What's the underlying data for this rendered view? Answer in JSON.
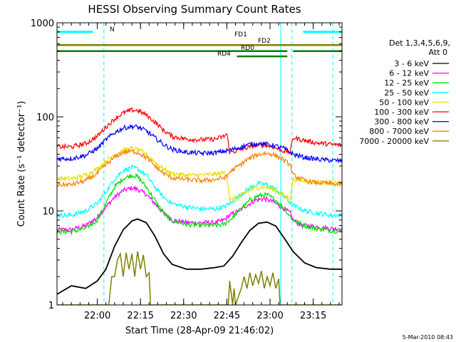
{
  "chart_data": {
    "type": "line",
    "title": "HESSI Observing Summary Count Rates",
    "xlabel": "Start Time (28-Apr-09 21:46:02)",
    "ylabel": "Count Rate (s⁻¹ detector⁻¹)",
    "yscale": "log",
    "ylim": [
      1,
      1000
    ],
    "xlim_minutes": [
      0,
      99
    ],
    "x_tick_labels": [
      "22:00",
      "22:15",
      "22:30",
      "22:45",
      "23:00",
      "23:15"
    ],
    "x_tick_minutes": [
      14,
      29,
      44,
      59,
      74,
      89
    ],
    "y_tick_labels": [
      "1",
      "10",
      "100",
      "1000"
    ],
    "y_tick_values": [
      1,
      10,
      100,
      1000
    ],
    "legend_title": [
      "Det 1,3,4,5,6,9,",
      "Att 0"
    ],
    "legend_position": "right",
    "series": [
      {
        "name": "3 - 6 keV",
        "color": "#000000",
        "points": [
          [
            0,
            1.3
          ],
          [
            5,
            1.6
          ],
          [
            10,
            1.5
          ],
          [
            14,
            1.8
          ],
          [
            17,
            2.4
          ],
          [
            20,
            4.2
          ],
          [
            23,
            6.3
          ],
          [
            26,
            7.8
          ],
          [
            28,
            8.2
          ],
          [
            31,
            7.5
          ],
          [
            34,
            5.4
          ],
          [
            37,
            3.5
          ],
          [
            40,
            2.7
          ],
          [
            45,
            2.4
          ],
          [
            50,
            2.4
          ],
          [
            55,
            2.5
          ],
          [
            58,
            2.6
          ],
          [
            61,
            3.3
          ],
          [
            64,
            4.6
          ],
          [
            67,
            6.2
          ],
          [
            70,
            7.4
          ],
          [
            73,
            7.6
          ],
          [
            76,
            6.9
          ],
          [
            79,
            5.1
          ],
          [
            82,
            3.7
          ],
          [
            86,
            2.8
          ],
          [
            90,
            2.5
          ],
          [
            95,
            2.4
          ],
          [
            99,
            2.4
          ]
        ]
      },
      {
        "name": "6 - 12 keV",
        "color": "#ff00ff",
        "points": [
          [
            0,
            6.3
          ],
          [
            5,
            6.3
          ],
          [
            10,
            7
          ],
          [
            14,
            8.5
          ],
          [
            17,
            11
          ],
          [
            20,
            14
          ],
          [
            23,
            16.5
          ],
          [
            26,
            17.5
          ],
          [
            28,
            17
          ],
          [
            31,
            15
          ],
          [
            34,
            12
          ],
          [
            37,
            9.5
          ],
          [
            40,
            8
          ],
          [
            45,
            7.5
          ],
          [
            50,
            7.5
          ],
          [
            55,
            7.5
          ],
          [
            58,
            8
          ],
          [
            59,
            8.5
          ],
          [
            60,
            9
          ],
          [
            63,
            10
          ],
          [
            66,
            11.5
          ],
          [
            69,
            13
          ],
          [
            72,
            13.5
          ],
          [
            75,
            12.5
          ],
          [
            78,
            11
          ],
          [
            81,
            9.5
          ],
          [
            82,
            8
          ],
          [
            85,
            7
          ],
          [
            90,
            6.8
          ],
          [
            95,
            6.5
          ],
          [
            99,
            6.5
          ]
        ]
      },
      {
        "name": "12 - 25 keV",
        "color": "#00e000",
        "points": [
          [
            0,
            6
          ],
          [
            5,
            6
          ],
          [
            10,
            6.5
          ],
          [
            14,
            8
          ],
          [
            17,
            12
          ],
          [
            20,
            18
          ],
          [
            23,
            22
          ],
          [
            26,
            24
          ],
          [
            28,
            23
          ],
          [
            31,
            18
          ],
          [
            34,
            13
          ],
          [
            37,
            9.5
          ],
          [
            40,
            7.8
          ],
          [
            45,
            7.2
          ],
          [
            50,
            7
          ],
          [
            55,
            7
          ],
          [
            58,
            7.2
          ],
          [
            61,
            8.5
          ],
          [
            64,
            10.5
          ],
          [
            67,
            13
          ],
          [
            70,
            14.5
          ],
          [
            73,
            14.8
          ],
          [
            76,
            13
          ],
          [
            79,
            10.5
          ],
          [
            82,
            8
          ],
          [
            86,
            7
          ],
          [
            90,
            6.5
          ],
          [
            95,
            6.2
          ],
          [
            99,
            6
          ]
        ]
      },
      {
        "name": "25 - 50 keV",
        "color": "#00ffff",
        "points": [
          [
            0,
            9
          ],
          [
            5,
            9
          ],
          [
            10,
            10
          ],
          [
            14,
            12
          ],
          [
            17,
            16
          ],
          [
            20,
            22
          ],
          [
            23,
            27
          ],
          [
            26,
            29
          ],
          [
            28,
            28
          ],
          [
            31,
            24
          ],
          [
            34,
            18
          ],
          [
            37,
            14
          ],
          [
            40,
            12
          ],
          [
            45,
            11
          ],
          [
            50,
            10.5
          ],
          [
            55,
            10.5
          ],
          [
            58,
            11
          ],
          [
            61,
            12.5
          ],
          [
            64,
            15
          ],
          [
            67,
            17.5
          ],
          [
            70,
            19.5
          ],
          [
            73,
            19
          ],
          [
            76,
            17
          ],
          [
            79,
            14
          ],
          [
            82,
            11.5
          ],
          [
            86,
            10
          ],
          [
            90,
            9.5
          ],
          [
            95,
            9
          ],
          [
            99,
            9
          ]
        ]
      },
      {
        "name": "50 - 100 keV",
        "color": "#e8e000",
        "points": [
          [
            0,
            22
          ],
          [
            5,
            22
          ],
          [
            10,
            24
          ],
          [
            14,
            28
          ],
          [
            17,
            34
          ],
          [
            20,
            40
          ],
          [
            23,
            44
          ],
          [
            26,
            46
          ],
          [
            28,
            45
          ],
          [
            31,
            40
          ],
          [
            34,
            33
          ],
          [
            37,
            28
          ],
          [
            40,
            25
          ],
          [
            45,
            24
          ],
          [
            50,
            24
          ],
          [
            55,
            24.5
          ],
          [
            58,
            25.5
          ],
          [
            59,
            25
          ],
          [
            60,
            13
          ],
          [
            63,
            14
          ],
          [
            66,
            16
          ],
          [
            69,
            17.5
          ],
          [
            72,
            18
          ],
          [
            75,
            17
          ],
          [
            78,
            15
          ],
          [
            81,
            13.5
          ],
          [
            82,
            21.5
          ],
          [
            86,
            21
          ],
          [
            90,
            20
          ],
          [
            95,
            20
          ],
          [
            99,
            20
          ]
        ]
      },
      {
        "name": "100 - 300 keV",
        "color": "#ff0000",
        "points": [
          [
            0,
            48
          ],
          [
            5,
            48
          ],
          [
            10,
            52
          ],
          [
            14,
            62
          ],
          [
            17,
            78
          ],
          [
            20,
            95
          ],
          [
            23,
            110
          ],
          [
            26,
            118
          ],
          [
            28,
            117
          ],
          [
            31,
            105
          ],
          [
            34,
            88
          ],
          [
            37,
            72
          ],
          [
            40,
            62
          ],
          [
            45,
            58
          ],
          [
            50,
            57
          ],
          [
            55,
            58
          ],
          [
            58,
            62
          ],
          [
            59,
            66
          ],
          [
            60,
            42
          ],
          [
            63,
            44
          ],
          [
            66,
            47
          ],
          [
            69,
            49.5
          ],
          [
            72,
            50
          ],
          [
            75,
            48
          ],
          [
            78,
            44
          ],
          [
            81,
            42
          ],
          [
            82,
            60
          ],
          [
            86,
            56
          ],
          [
            90,
            53
          ],
          [
            95,
            51
          ],
          [
            99,
            50
          ]
        ]
      },
      {
        "name": "300 - 800 keV",
        "color": "#0000ff",
        "points": [
          [
            0,
            36
          ],
          [
            5,
            36
          ],
          [
            10,
            39
          ],
          [
            14,
            46
          ],
          [
            17,
            57
          ],
          [
            20,
            68
          ],
          [
            23,
            76
          ],
          [
            26,
            79
          ],
          [
            28,
            78
          ],
          [
            31,
            71
          ],
          [
            34,
            60
          ],
          [
            37,
            51
          ],
          [
            40,
            45
          ],
          [
            45,
            42
          ],
          [
            50,
            41
          ],
          [
            55,
            41.5
          ],
          [
            58,
            43
          ],
          [
            61,
            45
          ],
          [
            64,
            48
          ],
          [
            67,
            51
          ],
          [
            70,
            52
          ],
          [
            73,
            51
          ],
          [
            76,
            49
          ],
          [
            79,
            46
          ],
          [
            82,
            40
          ],
          [
            86,
            37
          ],
          [
            90,
            35.5
          ],
          [
            95,
            34.5
          ],
          [
            99,
            34
          ]
        ]
      },
      {
        "name": "800 - 7000 keV",
        "color": "#ff8000",
        "points": [
          [
            0,
            19
          ],
          [
            5,
            19
          ],
          [
            10,
            21
          ],
          [
            14,
            25
          ],
          [
            17,
            31
          ],
          [
            20,
            37
          ],
          [
            23,
            42
          ],
          [
            26,
            43
          ],
          [
            28,
            42
          ],
          [
            31,
            37
          ],
          [
            34,
            30
          ],
          [
            37,
            25
          ],
          [
            40,
            22.5
          ],
          [
            45,
            21.5
          ],
          [
            50,
            21
          ],
          [
            55,
            21.5
          ],
          [
            58,
            22.5
          ],
          [
            59,
            23
          ],
          [
            60,
            26
          ],
          [
            63,
            30
          ],
          [
            66,
            35
          ],
          [
            69,
            39
          ],
          [
            72,
            41
          ],
          [
            75,
            40
          ],
          [
            78,
            36
          ],
          [
            81,
            31
          ],
          [
            82,
            24
          ],
          [
            86,
            21
          ],
          [
            90,
            20
          ],
          [
            95,
            19.5
          ],
          [
            99,
            19
          ]
        ]
      },
      {
        "name": "7000 - 20000 keV",
        "color": "#808000",
        "points": [
          [
            0,
            1
          ],
          [
            18,
            1
          ],
          [
            19,
            2
          ],
          [
            20,
            2
          ],
          [
            21,
            3
          ],
          [
            22,
            3.5
          ],
          [
            23,
            2
          ],
          [
            24,
            3.6
          ],
          [
            25,
            2.4
          ],
          [
            26,
            3.5
          ],
          [
            27,
            2
          ],
          [
            28,
            3.7
          ],
          [
            29,
            2.4
          ],
          [
            30,
            3.4
          ],
          [
            31,
            2
          ],
          [
            32,
            2.2
          ],
          [
            32.5,
            1
          ],
          [
            59.5,
            1
          ],
          [
            60,
            1.8
          ],
          [
            61,
            1
          ],
          [
            61.5,
            1.5
          ],
          [
            62,
            1
          ],
          [
            64,
            1.5
          ],
          [
            65,
            2
          ],
          [
            66,
            1.5
          ],
          [
            67,
            2.2
          ],
          [
            68,
            1.6
          ],
          [
            69,
            2.1
          ],
          [
            70,
            1.7
          ],
          [
            71,
            2.3
          ],
          [
            72,
            1.5
          ],
          [
            73,
            2
          ],
          [
            74,
            1.6
          ],
          [
            75,
            2.2
          ],
          [
            76,
            1.5
          ],
          [
            77,
            1.9
          ],
          [
            77.5,
            1
          ],
          [
            99,
            1
          ]
        ]
      }
    ],
    "annotations": [
      {
        "text": "N",
        "color": "#00ffff"
      },
      {
        "text": "FD1",
        "color": "#808000"
      },
      {
        "text": "FD2",
        "color": "#808000"
      },
      {
        "text": "RD0",
        "color": "#008000"
      },
      {
        "text": "RD4",
        "color": "#008000"
      }
    ],
    "interval_bars": [
      {
        "label": "N",
        "color": "#00ffff",
        "y": 800,
        "segments": [
          [
            0,
            12.5
          ],
          [
            85.5,
            99
          ]
        ]
      },
      {
        "label": "FD1/FD2",
        "color": "#808000",
        "y": 580,
        "segments": [
          [
            0,
            99
          ]
        ]
      },
      {
        "label": "RD0",
        "color": "#008000",
        "y": 500,
        "segments": [
          [
            0,
            80
          ],
          [
            82,
            99
          ]
        ]
      },
      {
        "label": "RD4",
        "color": "#008000",
        "y": 440,
        "segments": [
          [
            62.5,
            80
          ]
        ]
      }
    ],
    "event_markers": [
      {
        "color": "#00ffff",
        "style": "dashed",
        "minute": 16.3
      },
      {
        "color": "#00ffff",
        "style": "solid",
        "minute": 77.7
      },
      {
        "color": "#00ffff",
        "style": "dashed",
        "minute": 81.6
      },
      {
        "color": "#00ffff",
        "style": "dashed",
        "minute": 95.8
      }
    ]
  },
  "footer_timestamp": "5-Mar-2010 08:43"
}
